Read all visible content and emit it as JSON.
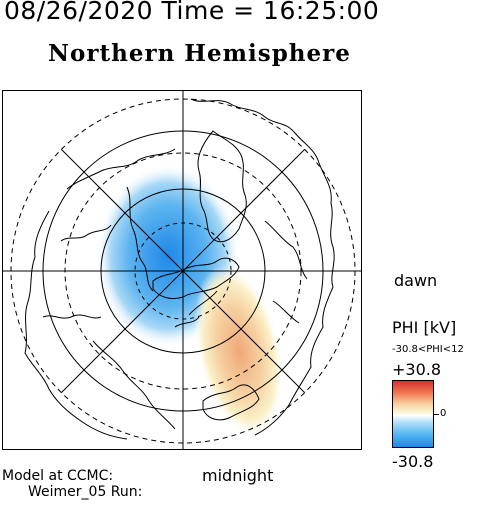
{
  "header": {
    "date_time": "08/26/2020 Time = 16:25:00"
  },
  "title": "Northern Hemisphere",
  "labels": {
    "dawn": "dawn",
    "midnight": "midnight"
  },
  "model": {
    "line1": "Model at CCMC:",
    "line2": "Weimer_05 Run:"
  },
  "colorbar": {
    "quantity": "PHI [kV]",
    "range_text": "-30.8<PHI<12",
    "max_label": "+30.8",
    "zero_label": "0",
    "min_label": "-30.8",
    "max_value": 30.8,
    "min_value": -30.8,
    "colors": {
      "high": "#d63030",
      "mid": "#ffffff",
      "low": "#1f88e8"
    }
  }
}
